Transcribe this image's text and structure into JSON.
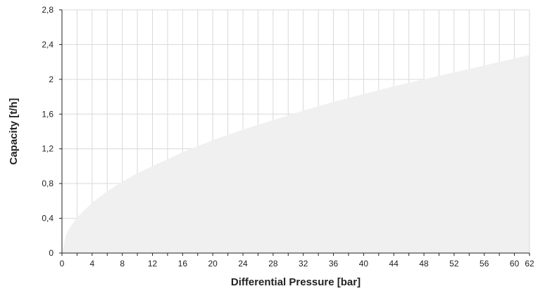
{
  "chart_data": {
    "type": "area",
    "title": "",
    "xlabel": "Differential Pressure [bar]",
    "ylabel": "Capacity [t/h]",
    "xlim": [
      0,
      62
    ],
    "ylim": [
      0,
      2.8
    ],
    "x_ticks": [
      0,
      2,
      4,
      6,
      8,
      10,
      12,
      14,
      16,
      18,
      20,
      22,
      24,
      26,
      28,
      30,
      32,
      34,
      36,
      38,
      40,
      42,
      44,
      46,
      48,
      50,
      52,
      54,
      56,
      58,
      60,
      62
    ],
    "x_tick_labels": [
      "0",
      "",
      "4",
      "",
      "8",
      "",
      "12",
      "",
      "16",
      "",
      "20",
      "",
      "24",
      "",
      "28",
      "",
      "32",
      "",
      "36",
      "",
      "40",
      "",
      "44",
      "",
      "48",
      "",
      "52",
      "",
      "56",
      "",
      "60",
      "62"
    ],
    "y_ticks": [
      0,
      0.4,
      0.8,
      1.2,
      1.6,
      2.0,
      2.4,
      2.8
    ],
    "y_tick_labels": [
      "0",
      "0,4",
      "0,8",
      "1,2",
      "1,6",
      "2",
      "2,4",
      "2,8"
    ],
    "grid": true,
    "legend": "none",
    "series": [
      {
        "x": [
          0,
          0.5,
          1,
          2,
          4,
          6,
          8,
          10,
          12,
          14,
          16,
          18,
          20,
          24,
          28,
          32,
          36,
          40,
          44,
          48,
          52,
          56,
          60,
          62
        ],
        "y": [
          0,
          0.2,
          0.29,
          0.41,
          0.58,
          0.71,
          0.82,
          0.92,
          1.0,
          1.08,
          1.16,
          1.23,
          1.3,
          1.42,
          1.53,
          1.64,
          1.74,
          1.83,
          1.92,
          2.0,
          2.08,
          2.16,
          2.24,
          2.28
        ]
      }
    ],
    "colors": {
      "area_fill": "#f0f0f0",
      "grid": "#d9d9d9",
      "axis": "#222222",
      "text": "#222222"
    }
  }
}
